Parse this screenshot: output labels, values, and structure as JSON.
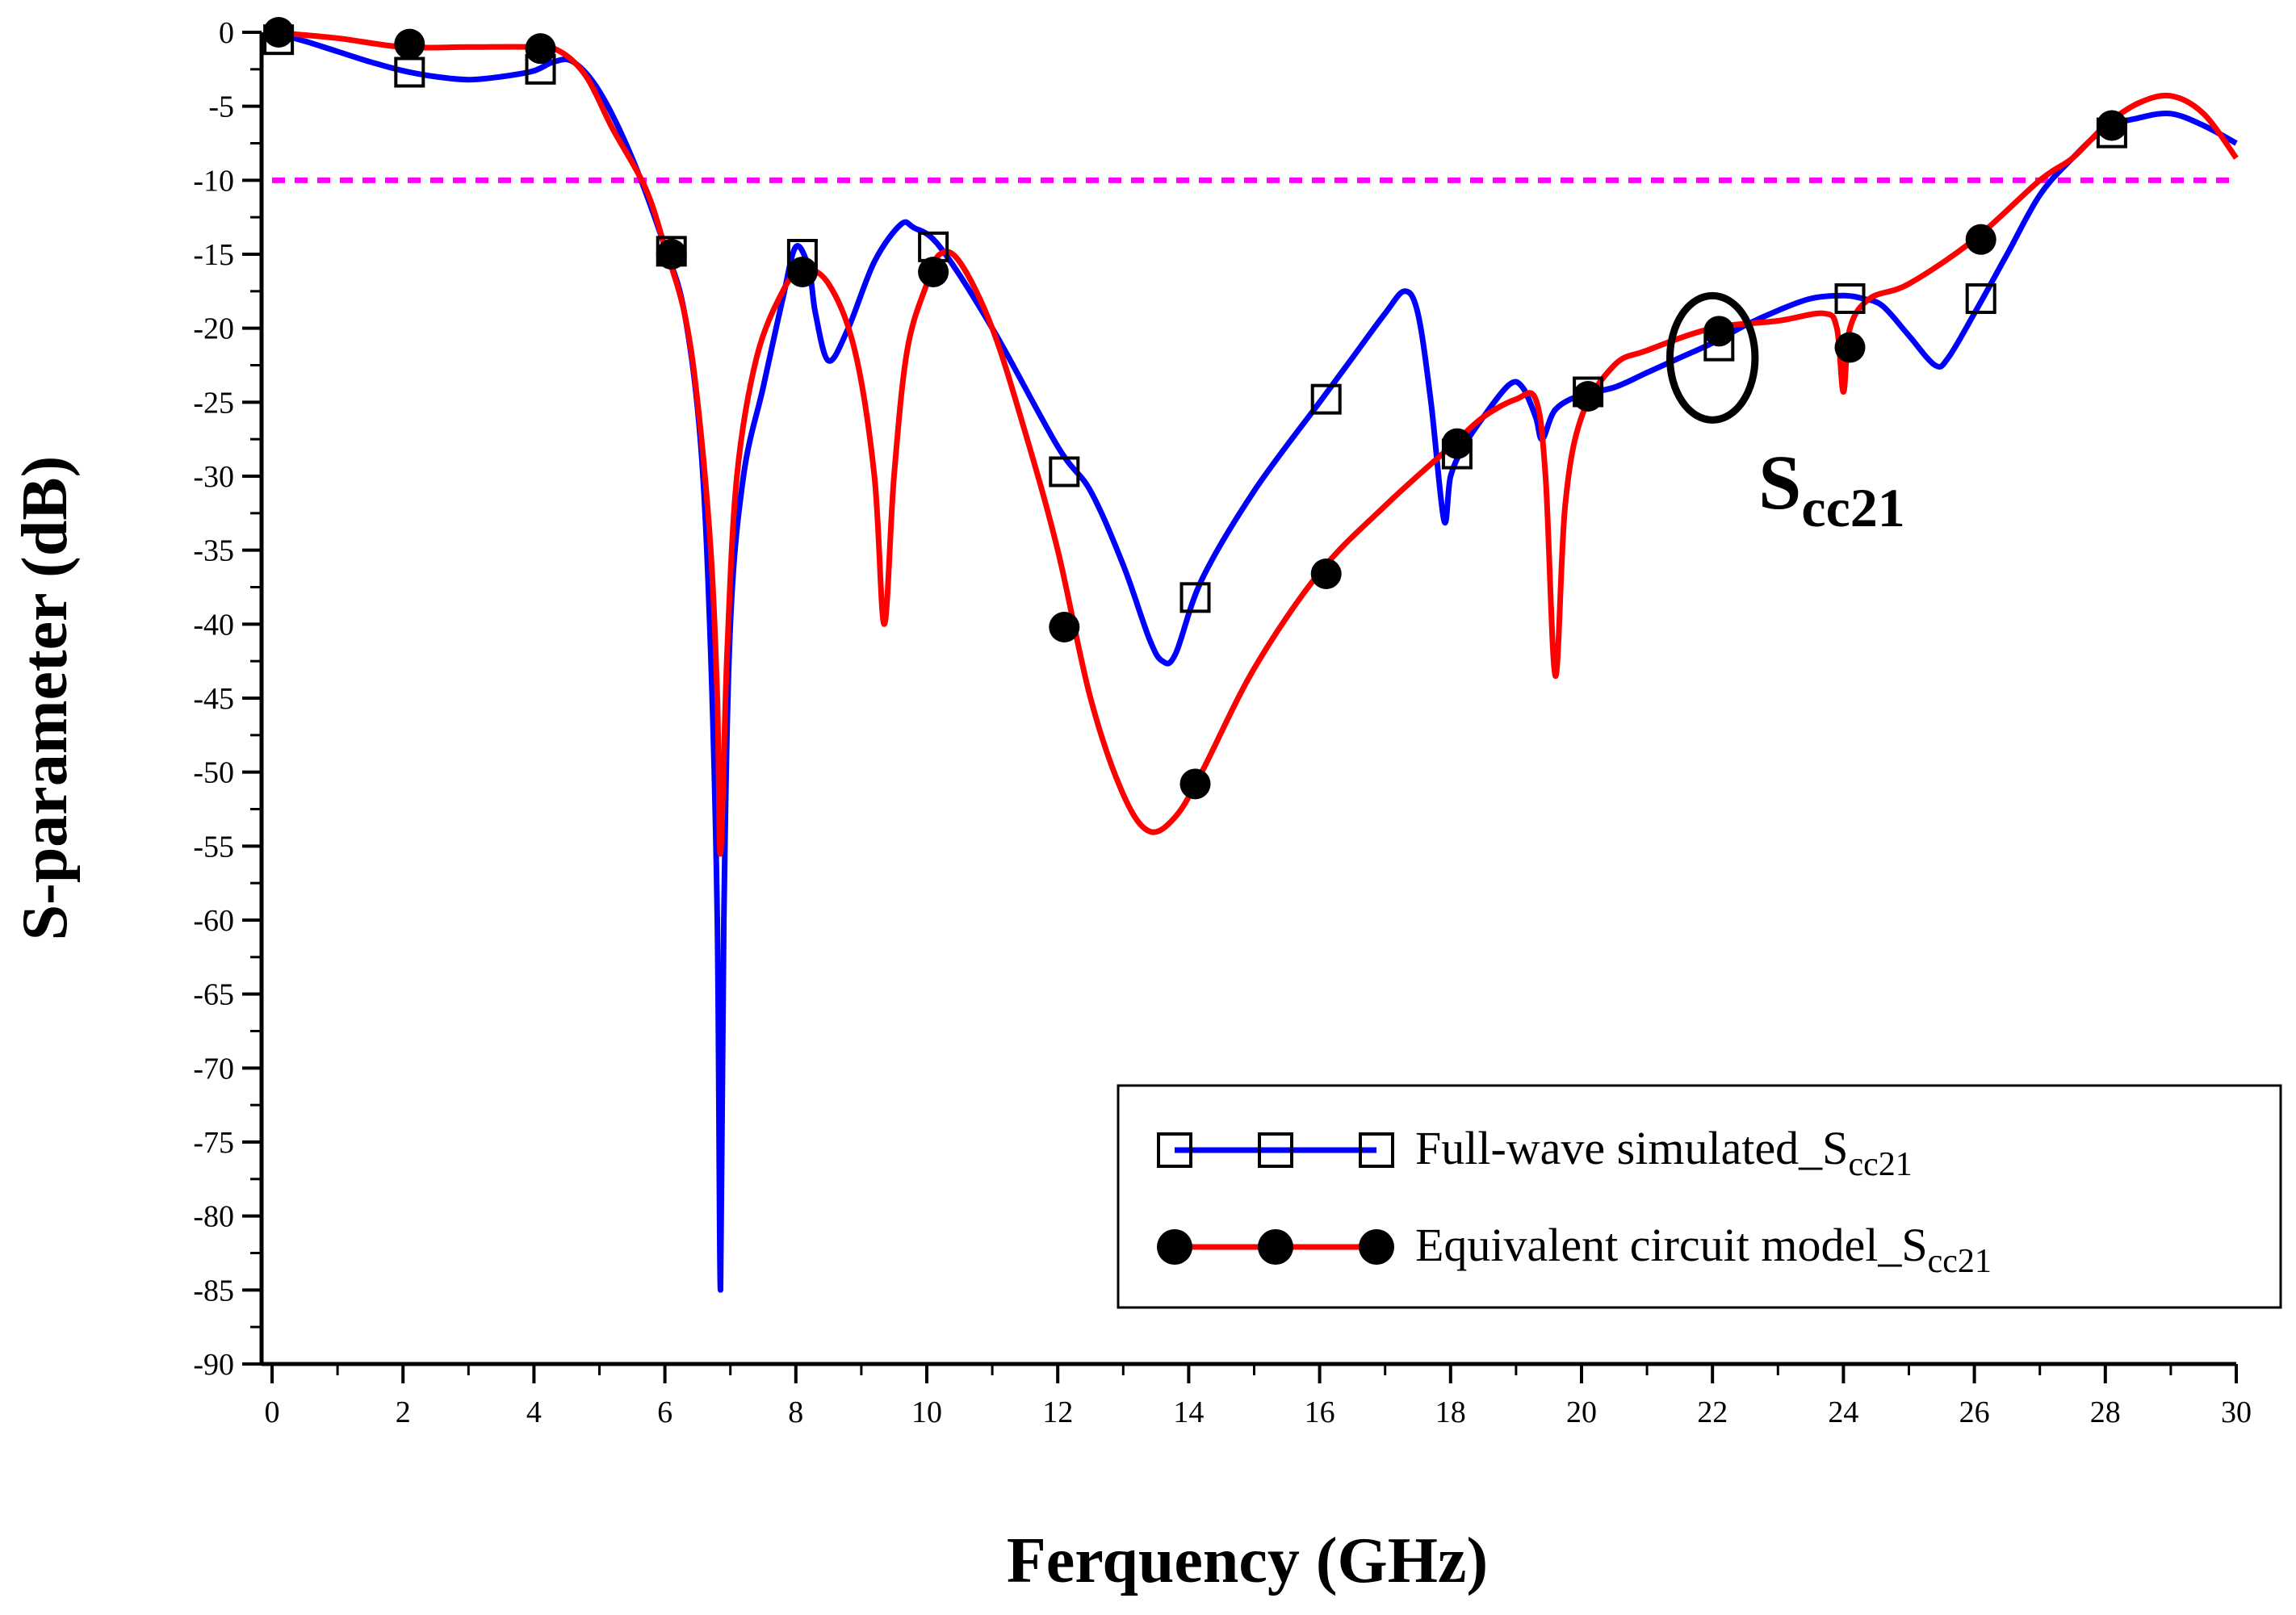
{
  "chart_data": {
    "type": "line",
    "title": "",
    "xlabel": "Ferquency (GHz)",
    "ylabel": "S-parameter (dB)",
    "xlim": [
      0,
      30
    ],
    "ylim": [
      -90,
      0
    ],
    "xticks": [
      0,
      2,
      4,
      6,
      8,
      10,
      12,
      14,
      16,
      18,
      20,
      22,
      24,
      26,
      28,
      30
    ],
    "yticks": [
      0,
      -5,
      -10,
      -15,
      -20,
      -25,
      -30,
      -35,
      -40,
      -45,
      -50,
      -55,
      -60,
      -65,
      -70,
      -75,
      -80,
      -85,
      -90
    ],
    "grid": false,
    "legend_position": "bottom-right",
    "reference_line": {
      "y": -10,
      "color": "#ff00ff",
      "style": "dashed"
    },
    "series": [
      {
        "name": "Full-wave simulated_S",
        "subscript": "cc21",
        "color": "#0000ff",
        "marker": "open-square",
        "curve": [
          [
            0,
            0
          ],
          [
            0.5,
            -0.6
          ],
          [
            1,
            -1.3
          ],
          [
            1.5,
            -2
          ],
          [
            2,
            -2.6
          ],
          [
            2.5,
            -3
          ],
          [
            3,
            -3.2
          ],
          [
            3.5,
            -3
          ],
          [
            4,
            -2.6
          ],
          [
            4.3,
            -2
          ],
          [
            4.6,
            -2
          ],
          [
            5,
            -4
          ],
          [
            5.5,
            -8.5
          ],
          [
            6,
            -14.5
          ],
          [
            6.3,
            -19
          ],
          [
            6.55,
            -28
          ],
          [
            6.7,
            -42
          ],
          [
            6.8,
            -60
          ],
          [
            6.85,
            -85
          ],
          [
            6.9,
            -60
          ],
          [
            7,
            -40
          ],
          [
            7.2,
            -30
          ],
          [
            7.5,
            -24
          ],
          [
            7.8,
            -18
          ],
          [
            8,
            -14.5
          ],
          [
            8.2,
            -16
          ],
          [
            8.3,
            -19
          ],
          [
            8.5,
            -22.2
          ],
          [
            8.8,
            -20
          ],
          [
            9.2,
            -15.5
          ],
          [
            9.6,
            -13
          ],
          [
            9.8,
            -13.2
          ],
          [
            10.2,
            -14.5
          ],
          [
            11,
            -20
          ],
          [
            12,
            -28
          ],
          [
            12.5,
            -31
          ],
          [
            13,
            -36
          ],
          [
            13.4,
            -41
          ],
          [
            13.6,
            -42.5
          ],
          [
            13.8,
            -42
          ],
          [
            14.2,
            -37
          ],
          [
            15,
            -31
          ],
          [
            16,
            -25
          ],
          [
            16.5,
            -22
          ],
          [
            17,
            -19
          ],
          [
            17.3,
            -17.5
          ],
          [
            17.5,
            -19
          ],
          [
            17.7,
            -25
          ],
          [
            17.9,
            -33
          ],
          [
            18,
            -30
          ],
          [
            18.2,
            -28
          ],
          [
            18.5,
            -26
          ],
          [
            18.9,
            -23.8
          ],
          [
            19.1,
            -24
          ],
          [
            19.3,
            -26
          ],
          [
            19.4,
            -27.5
          ],
          [
            19.6,
            -25.5
          ],
          [
            20,
            -24.5
          ],
          [
            20.5,
            -24
          ],
          [
            21,
            -23
          ],
          [
            21.5,
            -22
          ],
          [
            22,
            -21
          ],
          [
            22.5,
            -19.8
          ],
          [
            23,
            -18.8
          ],
          [
            23.5,
            -18
          ],
          [
            24,
            -17.8
          ],
          [
            24.3,
            -18
          ],
          [
            24.6,
            -18.5
          ],
          [
            25,
            -20.5
          ],
          [
            25.4,
            -22.5
          ],
          [
            25.6,
            -22
          ],
          [
            26,
            -19
          ],
          [
            26.5,
            -15
          ],
          [
            27,
            -11
          ],
          [
            27.5,
            -8.5
          ],
          [
            28,
            -6.5
          ],
          [
            28.5,
            -5.8
          ],
          [
            29,
            -5.5
          ],
          [
            29.5,
            -6.3
          ],
          [
            30,
            -7.5
          ]
        ],
        "markers": [
          [
            0.1,
            -0.5
          ],
          [
            2.1,
            -2.7
          ],
          [
            4.1,
            -2.5
          ],
          [
            6.1,
            -14.8
          ],
          [
            8.1,
            -15
          ],
          [
            10.1,
            -14.5
          ],
          [
            12.1,
            -29.7
          ],
          [
            14.1,
            -38.2
          ],
          [
            16.1,
            -24.8
          ],
          [
            18.1,
            -28.5
          ],
          [
            20.1,
            -24.3
          ],
          [
            22.1,
            -21.2
          ],
          [
            24.1,
            -18
          ],
          [
            26.1,
            -18
          ],
          [
            28.1,
            -6.8
          ]
        ]
      },
      {
        "name": "Equivalent circuit model_S",
        "subscript": "cc21",
        "color": "#ff0000",
        "marker": "filled-circle",
        "curve": [
          [
            0,
            0
          ],
          [
            1,
            -0.4
          ],
          [
            2,
            -1
          ],
          [
            3,
            -1
          ],
          [
            4,
            -1
          ],
          [
            4.4,
            -1.3
          ],
          [
            4.8,
            -3
          ],
          [
            5.2,
            -6.5
          ],
          [
            5.7,
            -10.5
          ],
          [
            6,
            -14.5
          ],
          [
            6.3,
            -19
          ],
          [
            6.5,
            -25
          ],
          [
            6.7,
            -35
          ],
          [
            6.8,
            -45
          ],
          [
            6.85,
            -55.5
          ],
          [
            6.95,
            -42
          ],
          [
            7.1,
            -30
          ],
          [
            7.4,
            -22
          ],
          [
            7.8,
            -17.5
          ],
          [
            8.1,
            -16
          ],
          [
            8.5,
            -17
          ],
          [
            8.9,
            -21.5
          ],
          [
            9.2,
            -30
          ],
          [
            9.35,
            -40
          ],
          [
            9.5,
            -30
          ],
          [
            9.7,
            -21.5
          ],
          [
            10,
            -17
          ],
          [
            10.2,
            -15
          ],
          [
            10.5,
            -15.5
          ],
          [
            11,
            -20
          ],
          [
            11.5,
            -27
          ],
          [
            12,
            -35
          ],
          [
            12.5,
            -45
          ],
          [
            13,
            -51.5
          ],
          [
            13.4,
            -54
          ],
          [
            13.8,
            -53
          ],
          [
            14.2,
            -50
          ],
          [
            15,
            -43
          ],
          [
            16,
            -36.5
          ],
          [
            17,
            -32
          ],
          [
            18,
            -28
          ],
          [
            18.5,
            -26
          ],
          [
            19,
            -24.8
          ],
          [
            19.3,
            -24.8
          ],
          [
            19.45,
            -30
          ],
          [
            19.6,
            -43.5
          ],
          [
            19.75,
            -32
          ],
          [
            20,
            -26
          ],
          [
            20.5,
            -22.5
          ],
          [
            21,
            -21.5
          ],
          [
            22,
            -20
          ],
          [
            23,
            -19.5
          ],
          [
            23.7,
            -19
          ],
          [
            23.9,
            -20
          ],
          [
            24,
            -24.3
          ],
          [
            24.1,
            -20
          ],
          [
            24.4,
            -18
          ],
          [
            25,
            -17
          ],
          [
            26,
            -14
          ],
          [
            27,
            -10
          ],
          [
            27.5,
            -8.5
          ],
          [
            28,
            -6.3
          ],
          [
            28.5,
            -4.8
          ],
          [
            29,
            -4.3
          ],
          [
            29.5,
            -5.5
          ],
          [
            30,
            -8.5
          ]
        ],
        "markers": [
          [
            0.1,
            0
          ],
          [
            2.1,
            -0.8
          ],
          [
            4.1,
            -1.1
          ],
          [
            6.1,
            -15
          ],
          [
            8.1,
            -16.2
          ],
          [
            10.1,
            -16.2
          ],
          [
            12.1,
            -40.2
          ],
          [
            14.1,
            -50.8
          ],
          [
            16.1,
            -36.6
          ],
          [
            18.1,
            -27.8
          ],
          [
            20.1,
            -24.6
          ],
          [
            22.1,
            -20.2
          ],
          [
            24.1,
            -21.3
          ],
          [
            26.1,
            -14
          ],
          [
            28.1,
            -6.3
          ]
        ]
      }
    ],
    "annotation": {
      "text": "S",
      "subscript": "cc21",
      "ellipse_center": [
        22,
        -22
      ],
      "ellipse_radii": [
        0.65,
        4.2
      ]
    }
  }
}
